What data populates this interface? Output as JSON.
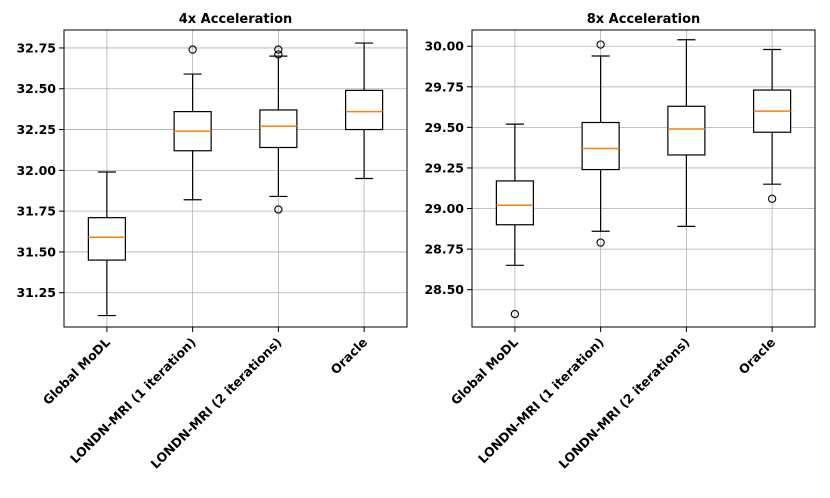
{
  "chart_data": [
    {
      "type": "boxplot",
      "title": "4x Acceleration",
      "xlabel": "",
      "ylabel": "",
      "ylim": [
        31.04,
        32.86
      ],
      "yticks": [
        31.25,
        31.5,
        31.75,
        32.0,
        32.25,
        32.5,
        32.75
      ],
      "ytick_labels": [
        "31.25",
        "31.50",
        "31.75",
        "32.00",
        "32.25",
        "32.50",
        "32.75"
      ],
      "grid": true,
      "categories": [
        "Global MoDL",
        "LONDN-MRI (1 iteration)",
        "LONDN-MRI (2 iterations)",
        "Oracle"
      ],
      "boxes": [
        {
          "whisker_low": 31.11,
          "q1": 31.45,
          "median": 31.59,
          "q3": 31.71,
          "whisker_high": 31.99,
          "outliers": []
        },
        {
          "whisker_low": 31.82,
          "q1": 32.12,
          "median": 32.24,
          "q3": 32.36,
          "whisker_high": 32.59,
          "outliers": [
            32.74
          ]
        },
        {
          "whisker_low": 31.84,
          "q1": 32.14,
          "median": 32.27,
          "q3": 32.37,
          "whisker_high": 32.7,
          "outliers": [
            31.76,
            32.71,
            32.74
          ]
        },
        {
          "whisker_low": 31.95,
          "q1": 32.25,
          "median": 32.36,
          "q3": 32.49,
          "whisker_high": 32.78,
          "outliers": []
        }
      ]
    },
    {
      "type": "boxplot",
      "title": "8x Acceleration",
      "xlabel": "",
      "ylabel": "",
      "ylim": [
        28.27,
        30.1
      ],
      "yticks": [
        28.5,
        28.75,
        29.0,
        29.25,
        29.5,
        29.75,
        30.0
      ],
      "ytick_labels": [
        "28.50",
        "28.75",
        "29.00",
        "29.25",
        "29.50",
        "29.75",
        "30.00"
      ],
      "grid": true,
      "categories": [
        "Global MoDL",
        "LONDN-MRI (1 iteration)",
        "LONDN-MRI (2 iterations)",
        "Oracle"
      ],
      "boxes": [
        {
          "whisker_low": 28.65,
          "q1": 28.9,
          "median": 29.02,
          "q3": 29.17,
          "whisker_high": 29.52,
          "outliers": [
            28.35
          ]
        },
        {
          "whisker_low": 28.86,
          "q1": 29.24,
          "median": 29.37,
          "q3": 29.53,
          "whisker_high": 29.94,
          "outliers": [
            28.79,
            30.01
          ]
        },
        {
          "whisker_low": 28.89,
          "q1": 29.33,
          "median": 29.49,
          "q3": 29.63,
          "whisker_high": 30.04,
          "outliers": []
        },
        {
          "whisker_low": 29.15,
          "q1": 29.47,
          "median": 29.6,
          "q3": 29.73,
          "whisker_high": 29.98,
          "outliers": [
            29.06
          ]
        }
      ]
    }
  ],
  "colors": {
    "box": "#000000",
    "median": "#ff7f0e",
    "grid": "#b0b0b0",
    "background": "#ffffff"
  }
}
